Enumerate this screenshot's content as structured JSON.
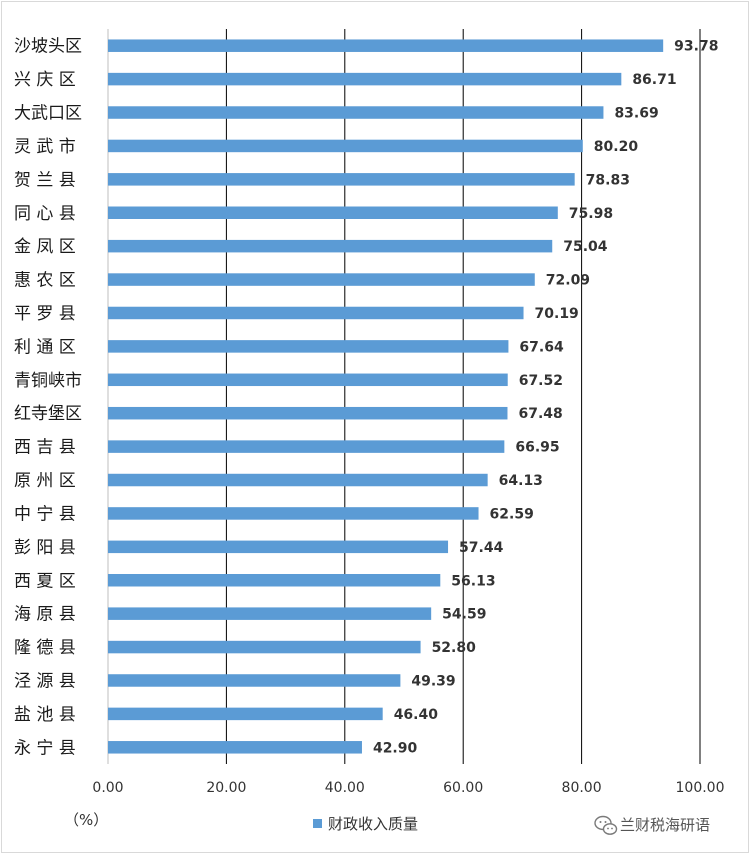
{
  "chart_data": {
    "type": "bar",
    "orientation": "horizontal",
    "categories": [
      "沙坡头区",
      "兴 庆 区",
      "大武口区",
      "灵 武 市",
      "贺 兰 县",
      "同 心 县",
      "金 凤 区",
      "惠 农 区",
      "平 罗 县",
      "利 通 区",
      "青铜峡市",
      "红寺堡区",
      "西 吉 县",
      "原 州 区",
      "中 宁 县",
      "彭 阳 县",
      "西 夏 区",
      "海 原 县",
      "隆 德 县",
      "泾 源 县",
      "盐 池 县",
      "永 宁 县"
    ],
    "series": [
      {
        "name": "财政收入质量",
        "values": [
          93.78,
          86.71,
          83.69,
          80.2,
          78.83,
          75.98,
          75.04,
          72.09,
          70.19,
          67.64,
          67.52,
          67.48,
          66.95,
          64.13,
          62.59,
          57.44,
          56.13,
          54.59,
          52.8,
          49.39,
          46.4,
          42.9
        ],
        "value_labels": [
          "93.78",
          "86.71",
          "83.69",
          "80.20",
          "78.83",
          "75.98",
          "75.04",
          "72.09",
          "70.19",
          "67.64",
          "67.52",
          "67.48",
          "66.95",
          "64.13",
          "62.59",
          "57.44",
          "56.13",
          "54.59",
          "52.80",
          "49.39",
          "46.40",
          "42.90"
        ],
        "color": "#5b9bd5"
      }
    ],
    "xlim": [
      0,
      100
    ],
    "x_ticks": [
      0,
      20,
      40,
      60,
      80,
      100
    ],
    "x_tick_labels": [
      "0.00",
      "20.00",
      "40.00",
      "60.00",
      "80.00",
      "100.00"
    ],
    "unit_label": "（%）",
    "legend_position": "bottom",
    "grid": "vertical",
    "grid_color": "#000000"
  },
  "watermark": {
    "text": "兰财税海研语",
    "icon": "wechat-icon"
  }
}
